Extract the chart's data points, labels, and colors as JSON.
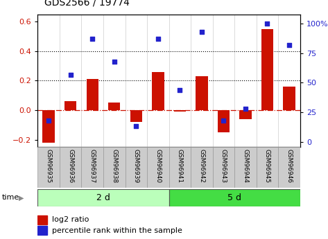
{
  "title": "GDS2566 / 19774",
  "samples": [
    "GSM96935",
    "GSM96936",
    "GSM96937",
    "GSM96938",
    "GSM96939",
    "GSM96940",
    "GSM96941",
    "GSM96942",
    "GSM96943",
    "GSM96944",
    "GSM96945",
    "GSM96946"
  ],
  "log2_ratio": [
    -0.22,
    0.06,
    0.21,
    0.05,
    -0.08,
    0.26,
    -0.01,
    0.23,
    -0.15,
    -0.06,
    0.55,
    0.16
  ],
  "pct_rank": [
    18,
    57,
    87,
    68,
    13,
    87,
    44,
    93,
    18,
    28,
    100,
    82
  ],
  "groups": [
    {
      "label": "2 d",
      "start": 0,
      "end": 6,
      "color": "#bbffbb"
    },
    {
      "label": "5 d",
      "start": 6,
      "end": 12,
      "color": "#44dd44"
    }
  ],
  "bar_color": "#cc1100",
  "dot_color": "#2222cc",
  "ylim_left": [
    -0.25,
    0.65
  ],
  "ylim_right": [
    -4.5,
    108
  ],
  "yticks_left": [
    -0.2,
    0.0,
    0.2,
    0.4,
    0.6
  ],
  "yticks_right": [
    0,
    25,
    50,
    75,
    100
  ],
  "ytick_labels_right": [
    "0",
    "25",
    "50",
    "75",
    "100%"
  ],
  "dotted_lines": [
    0.2,
    0.4
  ],
  "zero_line_color": "#cc1100",
  "bar_width": 0.55,
  "time_label": "time",
  "arrow": "▶",
  "legend_bar": "log2 ratio",
  "legend_dot": "percentile rank within the sample",
  "title_fontsize": 10,
  "tick_fontsize": 8,
  "sample_fontsize": 6.5,
  "group_fontsize": 9,
  "legend_fontsize": 8,
  "label_color_left": "#cc1100",
  "label_color_right": "#2222cc",
  "sample_bg_color": "#cccccc",
  "sample_border_color": "#999999"
}
